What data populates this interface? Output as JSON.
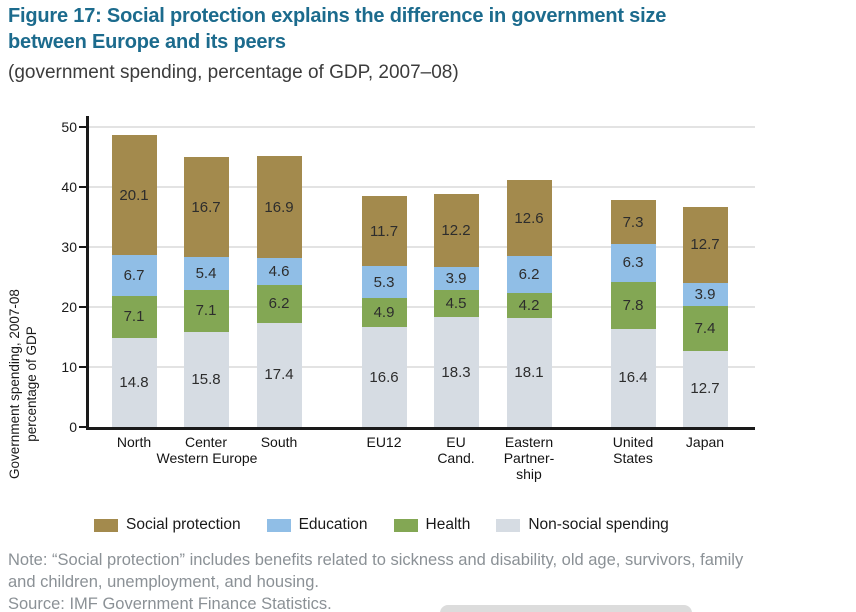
{
  "title": {
    "line1": "Figure 17: Social protection explains the difference in government size",
    "line2": "between Europe and its peers"
  },
  "subtitle": "(government spending, percentage of GDP, 2007–08)",
  "y_axis": {
    "label_line1": "Government spending, 2007-08",
    "label_line2": "percentage of GDP",
    "ticks": [
      0,
      10,
      20,
      30,
      40,
      50
    ]
  },
  "colors": {
    "title_text": "#1c6b8d",
    "subtitle_text": "#3c3c3c",
    "axis": "#1a1a1a",
    "gridline": "#e3e3e3",
    "tick_label": "#1a1a1a",
    "value_label": "#2d2d2d",
    "xlabel_text": "#141414",
    "legend_text": "#1a1a1a",
    "note_text": "#8b9196",
    "social_protection": "#a38a4d",
    "education": "#90bee6",
    "health": "#83a754",
    "non_social": "#d6dce3"
  },
  "chart_data": {
    "type": "bar",
    "stacked": true,
    "title": "Figure 17: Social protection explains the difference in government size between Europe and its peers",
    "subtitle": "(government spending, percentage of GDP, 2007–08)",
    "ylabel": "Government spending, 2007-08 percentage of GDP",
    "ylim": [
      0,
      50
    ],
    "grid": true,
    "legend_position": "bottom",
    "categories": [
      "North",
      "Center",
      "South",
      "EU12",
      "EU Cand.",
      "Eastern Partnership",
      "United States",
      "Japan"
    ],
    "category_label_lines": [
      [
        "North"
      ],
      [
        "Center"
      ],
      [
        "South"
      ],
      [
        "EU12"
      ],
      [
        "EU",
        "Cand."
      ],
      [
        "Eastern",
        "Partner-",
        "ship"
      ],
      [
        "United",
        "States"
      ],
      [
        "Japan"
      ]
    ],
    "x_centers": [
      134,
      206,
      279,
      384,
      456,
      529,
      633,
      705
    ],
    "group_label": {
      "text": "Western Europe",
      "x_center": 207
    },
    "series": [
      {
        "name": "Non-social spending",
        "key": "non_social",
        "values": [
          14.8,
          15.8,
          17.4,
          16.6,
          18.3,
          18.1,
          16.4,
          12.7
        ]
      },
      {
        "name": "Health",
        "key": "health",
        "values": [
          7.1,
          7.1,
          6.2,
          4.9,
          4.5,
          4.2,
          7.8,
          7.4
        ]
      },
      {
        "name": "Education",
        "key": "education",
        "values": [
          6.7,
          5.4,
          4.6,
          5.3,
          3.9,
          6.2,
          6.3,
          3.9
        ]
      },
      {
        "name": "Social protection",
        "key": "social_protection",
        "values": [
          20.1,
          16.7,
          16.9,
          11.7,
          12.2,
          12.6,
          7.3,
          12.7
        ]
      }
    ]
  },
  "legend": {
    "items": [
      {
        "label": "Social protection",
        "key": "social_protection"
      },
      {
        "label": "Education",
        "key": "education"
      },
      {
        "label": "Health",
        "key": "health"
      },
      {
        "label": "Non-social spending",
        "key": "non_social"
      }
    ]
  },
  "note": {
    "line1": "Note: “Social protection” includes benefits related to sickness and disability, old age, survivors, family",
    "line2": "and children, unemployment, and housing."
  },
  "source": "Source: IMF Government Finance Statistics."
}
